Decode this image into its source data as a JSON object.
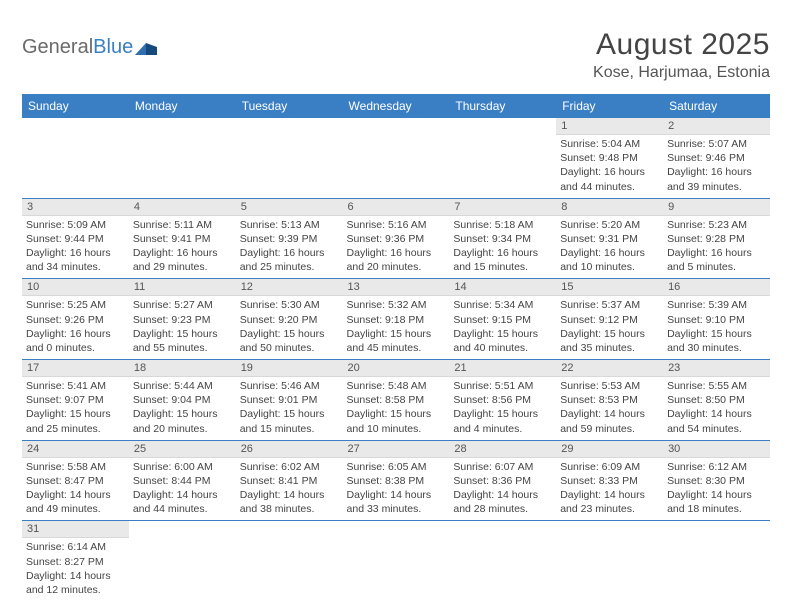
{
  "logo": {
    "word1": "General",
    "word2": "Blue"
  },
  "title": "August 2025",
  "location": "Kose, Harjumaa, Estonia",
  "colors": {
    "header_bg": "#3a7fc4",
    "header_text": "#ffffff",
    "daynum_bg": "#e9e9e9",
    "row_divider": "#3a7fc4",
    "body_text": "#444444",
    "logo_gray": "#6a6a6a",
    "logo_blue": "#3a7fc4"
  },
  "weekdays": [
    "Sunday",
    "Monday",
    "Tuesday",
    "Wednesday",
    "Thursday",
    "Friday",
    "Saturday"
  ],
  "weeks": [
    [
      null,
      null,
      null,
      null,
      null,
      {
        "n": "1",
        "sunrise": "5:04 AM",
        "sunset": "9:48 PM",
        "daylight": "16 hours and 44 minutes."
      },
      {
        "n": "2",
        "sunrise": "5:07 AM",
        "sunset": "9:46 PM",
        "daylight": "16 hours and 39 minutes."
      }
    ],
    [
      {
        "n": "3",
        "sunrise": "5:09 AM",
        "sunset": "9:44 PM",
        "daylight": "16 hours and 34 minutes."
      },
      {
        "n": "4",
        "sunrise": "5:11 AM",
        "sunset": "9:41 PM",
        "daylight": "16 hours and 29 minutes."
      },
      {
        "n": "5",
        "sunrise": "5:13 AM",
        "sunset": "9:39 PM",
        "daylight": "16 hours and 25 minutes."
      },
      {
        "n": "6",
        "sunrise": "5:16 AM",
        "sunset": "9:36 PM",
        "daylight": "16 hours and 20 minutes."
      },
      {
        "n": "7",
        "sunrise": "5:18 AM",
        "sunset": "9:34 PM",
        "daylight": "16 hours and 15 minutes."
      },
      {
        "n": "8",
        "sunrise": "5:20 AM",
        "sunset": "9:31 PM",
        "daylight": "16 hours and 10 minutes."
      },
      {
        "n": "9",
        "sunrise": "5:23 AM",
        "sunset": "9:28 PM",
        "daylight": "16 hours and 5 minutes."
      }
    ],
    [
      {
        "n": "10",
        "sunrise": "5:25 AM",
        "sunset": "9:26 PM",
        "daylight": "16 hours and 0 minutes."
      },
      {
        "n": "11",
        "sunrise": "5:27 AM",
        "sunset": "9:23 PM",
        "daylight": "15 hours and 55 minutes."
      },
      {
        "n": "12",
        "sunrise": "5:30 AM",
        "sunset": "9:20 PM",
        "daylight": "15 hours and 50 minutes."
      },
      {
        "n": "13",
        "sunrise": "5:32 AM",
        "sunset": "9:18 PM",
        "daylight": "15 hours and 45 minutes."
      },
      {
        "n": "14",
        "sunrise": "5:34 AM",
        "sunset": "9:15 PM",
        "daylight": "15 hours and 40 minutes."
      },
      {
        "n": "15",
        "sunrise": "5:37 AM",
        "sunset": "9:12 PM",
        "daylight": "15 hours and 35 minutes."
      },
      {
        "n": "16",
        "sunrise": "5:39 AM",
        "sunset": "9:10 PM",
        "daylight": "15 hours and 30 minutes."
      }
    ],
    [
      {
        "n": "17",
        "sunrise": "5:41 AM",
        "sunset": "9:07 PM",
        "daylight": "15 hours and 25 minutes."
      },
      {
        "n": "18",
        "sunrise": "5:44 AM",
        "sunset": "9:04 PM",
        "daylight": "15 hours and 20 minutes."
      },
      {
        "n": "19",
        "sunrise": "5:46 AM",
        "sunset": "9:01 PM",
        "daylight": "15 hours and 15 minutes."
      },
      {
        "n": "20",
        "sunrise": "5:48 AM",
        "sunset": "8:58 PM",
        "daylight": "15 hours and 10 minutes."
      },
      {
        "n": "21",
        "sunrise": "5:51 AM",
        "sunset": "8:56 PM",
        "daylight": "15 hours and 4 minutes."
      },
      {
        "n": "22",
        "sunrise": "5:53 AM",
        "sunset": "8:53 PM",
        "daylight": "14 hours and 59 minutes."
      },
      {
        "n": "23",
        "sunrise": "5:55 AM",
        "sunset": "8:50 PM",
        "daylight": "14 hours and 54 minutes."
      }
    ],
    [
      {
        "n": "24",
        "sunrise": "5:58 AM",
        "sunset": "8:47 PM",
        "daylight": "14 hours and 49 minutes."
      },
      {
        "n": "25",
        "sunrise": "6:00 AM",
        "sunset": "8:44 PM",
        "daylight": "14 hours and 44 minutes."
      },
      {
        "n": "26",
        "sunrise": "6:02 AM",
        "sunset": "8:41 PM",
        "daylight": "14 hours and 38 minutes."
      },
      {
        "n": "27",
        "sunrise": "6:05 AM",
        "sunset": "8:38 PM",
        "daylight": "14 hours and 33 minutes."
      },
      {
        "n": "28",
        "sunrise": "6:07 AM",
        "sunset": "8:36 PM",
        "daylight": "14 hours and 28 minutes."
      },
      {
        "n": "29",
        "sunrise": "6:09 AM",
        "sunset": "8:33 PM",
        "daylight": "14 hours and 23 minutes."
      },
      {
        "n": "30",
        "sunrise": "6:12 AM",
        "sunset": "8:30 PM",
        "daylight": "14 hours and 18 minutes."
      }
    ],
    [
      {
        "n": "31",
        "sunrise": "6:14 AM",
        "sunset": "8:27 PM",
        "daylight": "14 hours and 12 minutes."
      },
      null,
      null,
      null,
      null,
      null,
      null
    ]
  ],
  "labels": {
    "sunrise": "Sunrise:",
    "sunset": "Sunset:",
    "daylight": "Daylight:"
  }
}
